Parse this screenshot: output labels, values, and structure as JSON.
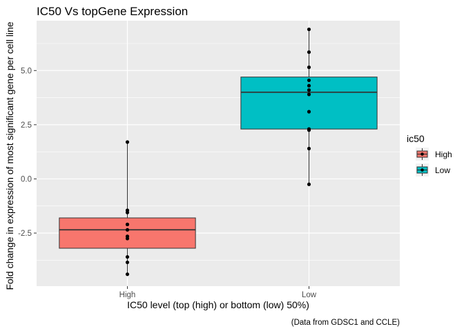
{
  "chart_data": {
    "type": "box",
    "title": "IC50 Vs topGene Expression",
    "xlabel": "IC50 level (top (high) or bottom (low) 50%)",
    "ylabel": "Fold change in expression of most significant gene per cell line",
    "caption": "(Data from GDSC1 and CCLE)",
    "categories": [
      "High",
      "Low"
    ],
    "y_ticks": [
      -2.5,
      0.0,
      2.5,
      5.0
    ],
    "y_tick_labels": [
      "-2.5",
      "0.0",
      "2.5",
      "5.0"
    ],
    "ylim": [
      -4.95,
      7.3
    ],
    "grid": true,
    "legend": {
      "title": "ic50",
      "placement": "right",
      "entries": [
        "High",
        "Low"
      ]
    },
    "colors": {
      "High": "#f8766d",
      "Low": "#00bfc4",
      "panel": "#ebebeb",
      "grid": "#ffffff",
      "points": "#000000"
    },
    "boxes": [
      {
        "category": "High",
        "whisker_low": -4.4,
        "q1": -3.2,
        "median": -2.35,
        "q3": -1.8,
        "whisker_high": 1.7
      },
      {
        "category": "Low",
        "whisker_low": -0.25,
        "q1": 2.3,
        "median": 4.0,
        "q3": 4.7,
        "whisker_high": 6.9
      }
    ],
    "points": [
      {
        "category": "High",
        "values": [
          1.7,
          -1.45,
          -1.55,
          -2.1,
          -2.1,
          -2.35,
          -2.65,
          -2.75,
          -3.6,
          -3.85,
          -4.4
        ]
      },
      {
        "category": "Low",
        "values": [
          6.9,
          5.85,
          5.15,
          4.55,
          4.3,
          4.1,
          3.9,
          3.1,
          2.3,
          2.25,
          1.4,
          -0.25
        ]
      }
    ]
  }
}
